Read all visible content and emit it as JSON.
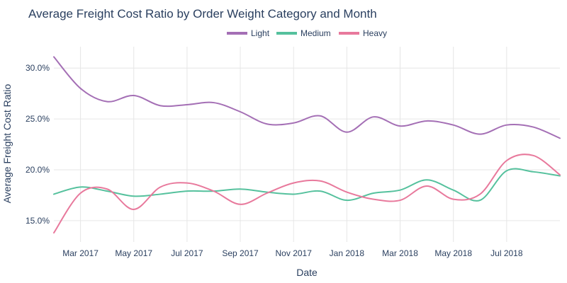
{
  "chart_data": {
    "type": "line",
    "title": "Average Freight Cost Ratio by Order Weight Category and Month",
    "xlabel": "Date",
    "ylabel": "Average Freight Cost Ratio",
    "x": [
      "2017-02",
      "2017-03",
      "2017-04",
      "2017-05",
      "2017-06",
      "2017-07",
      "2017-08",
      "2017-09",
      "2017-10",
      "2017-11",
      "2017-12",
      "2018-01",
      "2018-02",
      "2018-03",
      "2018-04",
      "2018-05",
      "2018-06",
      "2018-07",
      "2018-08",
      "2018-09"
    ],
    "x_ticks": [
      "Mar 2017",
      "May 2017",
      "Jul 2017",
      "Sep 2017",
      "Nov 2017",
      "Jan 2018",
      "Mar 2018",
      "May 2018",
      "Jul 2018"
    ],
    "y_ticks": [
      "15.0%",
      "20.0%",
      "25.0%",
      "30.0%"
    ],
    "ylim": [
      0.129,
      0.321
    ],
    "grid": true,
    "legend_position": "top-center",
    "series": [
      {
        "name": "Light",
        "color": "#a46fb5",
        "values": [
          0.311,
          0.28,
          0.267,
          0.273,
          0.263,
          0.264,
          0.266,
          0.257,
          0.245,
          0.246,
          0.253,
          0.237,
          0.252,
          0.243,
          0.248,
          0.244,
          0.235,
          0.244,
          0.242,
          0.231
        ]
      },
      {
        "name": "Medium",
        "color": "#55c19d",
        "values": [
          0.176,
          0.183,
          0.179,
          0.174,
          0.176,
          0.179,
          0.179,
          0.181,
          0.178,
          0.176,
          0.179,
          0.17,
          0.177,
          0.18,
          0.19,
          0.18,
          0.17,
          0.199,
          0.198,
          0.194
        ]
      },
      {
        "name": "Heavy",
        "color": "#e8799c",
        "values": [
          0.138,
          0.177,
          0.181,
          0.161,
          0.183,
          0.187,
          0.179,
          0.166,
          0.177,
          0.187,
          0.189,
          0.178,
          0.171,
          0.17,
          0.184,
          0.171,
          0.176,
          0.209,
          0.214,
          0.195
        ]
      }
    ]
  }
}
